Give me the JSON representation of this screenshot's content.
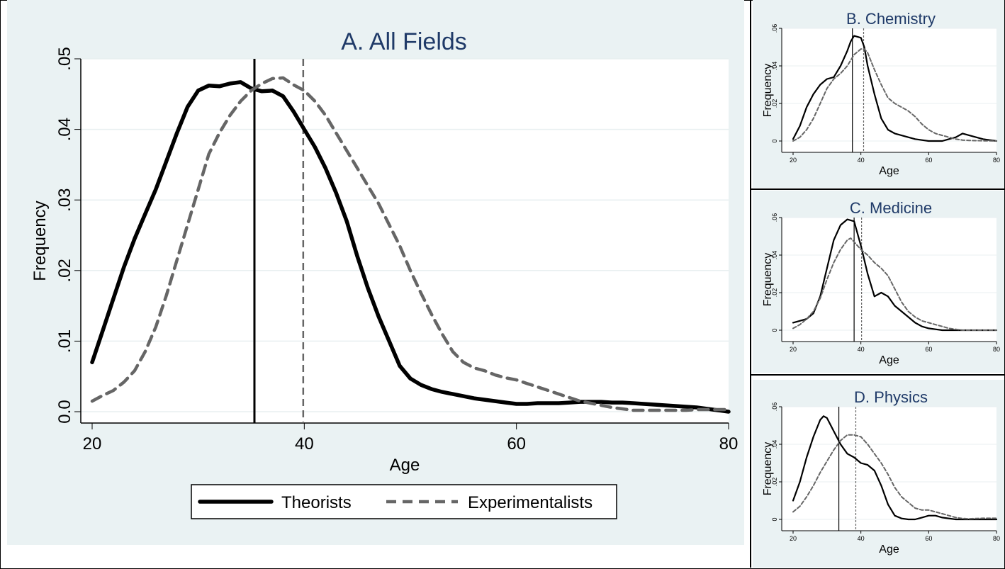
{
  "chart_data": [
    {
      "type": "line",
      "title": "A. All Fields",
      "xlabel": "Age",
      "ylabel": "Frequency",
      "xlim": [
        20,
        80
      ],
      "ylim": [
        0,
        0.05
      ],
      "xticks": [
        "20",
        "40",
        "60",
        "80"
      ],
      "yticks": [
        "0.0",
        ".01",
        ".02",
        ".03",
        ".04",
        ".05"
      ],
      "grid": true,
      "legend_position": "bottom",
      "vlines": [
        35.3,
        39.9
      ],
      "series": [
        {
          "name": "Theorists",
          "style": "solid",
          "color": "#000000",
          "x": [
            20,
            21,
            22,
            23,
            24,
            25,
            26,
            27,
            28,
            29,
            30,
            31,
            32,
            33,
            34,
            35,
            36,
            37,
            38,
            39,
            40,
            41,
            42,
            43,
            44,
            45,
            46,
            47,
            48,
            49,
            50,
            51,
            52,
            53,
            54,
            55,
            56,
            57,
            58,
            59,
            60,
            61,
            62,
            63,
            64,
            65,
            66,
            67,
            68,
            69,
            70,
            71,
            72,
            73,
            74,
            75,
            76,
            77,
            78,
            79,
            80
          ],
          "y": [
            0.007,
            0.0115,
            0.016,
            0.0205,
            0.0245,
            0.028,
            0.0315,
            0.0355,
            0.0395,
            0.0432,
            0.0455,
            0.0462,
            0.0461,
            0.0465,
            0.0467,
            0.0458,
            0.0454,
            0.0455,
            0.0447,
            0.0425,
            0.04,
            0.0375,
            0.0345,
            0.031,
            0.027,
            0.022,
            0.0175,
            0.0135,
            0.01,
            0.0065,
            0.0047,
            0.0038,
            0.0032,
            0.0028,
            0.0025,
            0.0022,
            0.0019,
            0.0017,
            0.0015,
            0.0013,
            0.0011,
            0.0011,
            0.0012,
            0.0012,
            0.0012,
            0.0013,
            0.0014,
            0.0014,
            0.0014,
            0.0013,
            0.0013,
            0.0012,
            0.0011,
            0.001,
            0.0009,
            0.0008,
            0.0007,
            0.0006,
            0.0004,
            0.0002,
            0.0
          ]
        },
        {
          "name": "Experimentalists",
          "style": "dashed",
          "color": "#666666",
          "x": [
            20,
            21,
            22,
            23,
            24,
            25,
            26,
            27,
            28,
            29,
            30,
            31,
            32,
            33,
            34,
            35,
            36,
            37,
            38,
            39,
            40,
            41,
            42,
            43,
            44,
            45,
            46,
            47,
            48,
            49,
            50,
            51,
            52,
            53,
            54,
            55,
            56,
            57,
            58,
            59,
            60,
            61,
            62,
            63,
            64,
            65,
            66,
            67,
            68,
            69,
            70,
            71,
            72,
            73,
            74,
            75,
            76,
            77,
            78,
            79,
            80
          ],
          "y": [
            0.0015,
            0.0023,
            0.003,
            0.0042,
            0.0058,
            0.0085,
            0.012,
            0.0165,
            0.0215,
            0.0265,
            0.0315,
            0.0365,
            0.0395,
            0.042,
            0.044,
            0.0455,
            0.0465,
            0.0472,
            0.0473,
            0.0463,
            0.0455,
            0.044,
            0.042,
            0.0395,
            0.037,
            0.0345,
            0.032,
            0.0295,
            0.0265,
            0.0235,
            0.02,
            0.0168,
            0.0138,
            0.011,
            0.0085,
            0.007,
            0.0062,
            0.0058,
            0.0052,
            0.0048,
            0.0045,
            0.004,
            0.0035,
            0.003,
            0.0025,
            0.002,
            0.0015,
            0.0012,
            0.0009,
            0.0006,
            0.0004,
            0.0002,
            0.0002,
            0.0002,
            0.0002,
            0.0002,
            0.0002,
            0.0003,
            0.0003,
            0.0003,
            0.0003
          ]
        }
      ]
    },
    {
      "type": "line",
      "title": "B. Chemistry",
      "xlabel": "Age",
      "ylabel": "Frequency",
      "xlim": [
        20,
        80
      ],
      "ylim": [
        0,
        0.06
      ],
      "xticks": [
        "20",
        "40",
        "60",
        "80"
      ],
      "yticks": [
        "0",
        ".02",
        ".04",
        ".06"
      ],
      "vlines": [
        37.5,
        40.8
      ],
      "series": [
        {
          "style": "solid",
          "color": "#000000",
          "x": [
            20,
            22,
            24,
            26,
            28,
            30,
            32,
            34,
            36,
            37,
            38,
            40,
            41,
            42,
            44,
            46,
            48,
            50,
            52,
            54,
            56,
            58,
            60,
            62,
            64,
            66,
            68,
            70,
            72,
            74,
            76,
            78,
            80
          ],
          "y": [
            0.001,
            0.008,
            0.018,
            0.025,
            0.03,
            0.033,
            0.034,
            0.04,
            0.048,
            0.053,
            0.056,
            0.055,
            0.05,
            0.04,
            0.025,
            0.012,
            0.006,
            0.004,
            0.003,
            0.002,
            0.001,
            0.0005,
            0.0,
            0.0,
            0.0,
            0.001,
            0.002,
            0.004,
            0.003,
            0.002,
            0.001,
            0.0005,
            0.0
          ]
        },
        {
          "style": "dashed",
          "color": "#666666",
          "x": [
            20,
            22,
            24,
            26,
            28,
            30,
            32,
            34,
            36,
            38,
            40,
            41,
            42,
            44,
            46,
            48,
            50,
            52,
            54,
            56,
            58,
            60,
            62,
            64,
            66,
            68,
            70,
            72,
            74,
            76,
            78,
            80
          ],
          "y": [
            0.0,
            0.002,
            0.006,
            0.012,
            0.02,
            0.028,
            0.033,
            0.036,
            0.04,
            0.046,
            0.049,
            0.049,
            0.047,
            0.038,
            0.03,
            0.023,
            0.02,
            0.018,
            0.016,
            0.013,
            0.009,
            0.006,
            0.004,
            0.003,
            0.002,
            0.001,
            0.0005,
            0.0003,
            0.0002,
            0.0001,
            0.0001,
            0.0
          ]
        }
      ]
    },
    {
      "type": "line",
      "title": "C. Medicine",
      "xlabel": "Age",
      "ylabel": "Frequency",
      "xlim": [
        20,
        80
      ],
      "ylim": [
        0,
        0.06
      ],
      "xticks": [
        "20",
        "40",
        "60",
        "80"
      ],
      "yticks": [
        "0",
        ".02",
        ".04",
        ".06"
      ],
      "vlines": [
        38.0,
        40.2
      ],
      "series": [
        {
          "style": "solid",
          "color": "#000000",
          "x": [
            20,
            22,
            24,
            26,
            28,
            30,
            32,
            34,
            36,
            38,
            40,
            42,
            44,
            46,
            48,
            50,
            52,
            54,
            56,
            58,
            60,
            62,
            64,
            66,
            68,
            70,
            72,
            74,
            76,
            78,
            80
          ],
          "y": [
            0.004,
            0.005,
            0.006,
            0.009,
            0.018,
            0.033,
            0.048,
            0.056,
            0.059,
            0.058,
            0.045,
            0.03,
            0.018,
            0.02,
            0.018,
            0.013,
            0.01,
            0.007,
            0.004,
            0.002,
            0.001,
            0.0005,
            0.0,
            0.0,
            0.0,
            0.0,
            0.0,
            0.0,
            0.0,
            0.0,
            0.0
          ]
        },
        {
          "style": "dashed",
          "color": "#666666",
          "x": [
            20,
            22,
            24,
            26,
            28,
            30,
            32,
            34,
            36,
            37,
            38,
            40,
            42,
            44,
            46,
            48,
            50,
            52,
            54,
            56,
            58,
            60,
            62,
            64,
            66,
            68,
            70,
            72,
            74,
            76,
            78,
            80
          ],
          "y": [
            0.001,
            0.003,
            0.006,
            0.01,
            0.017,
            0.027,
            0.036,
            0.043,
            0.048,
            0.049,
            0.047,
            0.043,
            0.04,
            0.036,
            0.033,
            0.029,
            0.022,
            0.015,
            0.01,
            0.007,
            0.005,
            0.004,
            0.003,
            0.002,
            0.001,
            0.0005,
            0.0,
            0.0,
            0.0,
            0.0,
            0.0,
            0.0
          ]
        }
      ]
    },
    {
      "type": "line",
      "title": "D. Physics",
      "xlabel": "Age",
      "ylabel": "Frequency",
      "xlim": [
        20,
        80
      ],
      "ylim": [
        0,
        0.06
      ],
      "xticks": [
        "20",
        "40",
        "60",
        "80"
      ],
      "yticks": [
        "0",
        ".02",
        ".04",
        ".06"
      ],
      "vlines": [
        33.5,
        38.5
      ],
      "series": [
        {
          "style": "solid",
          "color": "#000000",
          "x": [
            20,
            22,
            24,
            26,
            28,
            29,
            30,
            32,
            34,
            36,
            38,
            40,
            42,
            44,
            46,
            48,
            50,
            52,
            54,
            56,
            58,
            60,
            62,
            64,
            66,
            68,
            70,
            72,
            74,
            76,
            78,
            80
          ],
          "y": [
            0.01,
            0.02,
            0.033,
            0.044,
            0.053,
            0.055,
            0.054,
            0.047,
            0.04,
            0.035,
            0.033,
            0.03,
            0.029,
            0.026,
            0.018,
            0.008,
            0.002,
            0.0005,
            0.0,
            0.0,
            0.001,
            0.002,
            0.002,
            0.001,
            0.0005,
            0.0,
            0.0,
            0.0,
            0.0,
            0.0,
            0.0,
            0.0
          ]
        },
        {
          "style": "dashed",
          "color": "#666666",
          "x": [
            20,
            22,
            24,
            26,
            28,
            30,
            32,
            34,
            36,
            38,
            40,
            42,
            44,
            46,
            48,
            50,
            52,
            54,
            56,
            58,
            60,
            62,
            64,
            66,
            68,
            70,
            72,
            74,
            76,
            78,
            80
          ],
          "y": [
            0.004,
            0.007,
            0.012,
            0.018,
            0.025,
            0.031,
            0.037,
            0.042,
            0.045,
            0.045,
            0.044,
            0.04,
            0.035,
            0.03,
            0.024,
            0.017,
            0.012,
            0.009,
            0.006,
            0.005,
            0.005,
            0.004,
            0.003,
            0.002,
            0.001,
            0.0005,
            0.0003,
            0.0005,
            0.0006,
            0.0006,
            0.0006
          ]
        }
      ]
    }
  ]
}
